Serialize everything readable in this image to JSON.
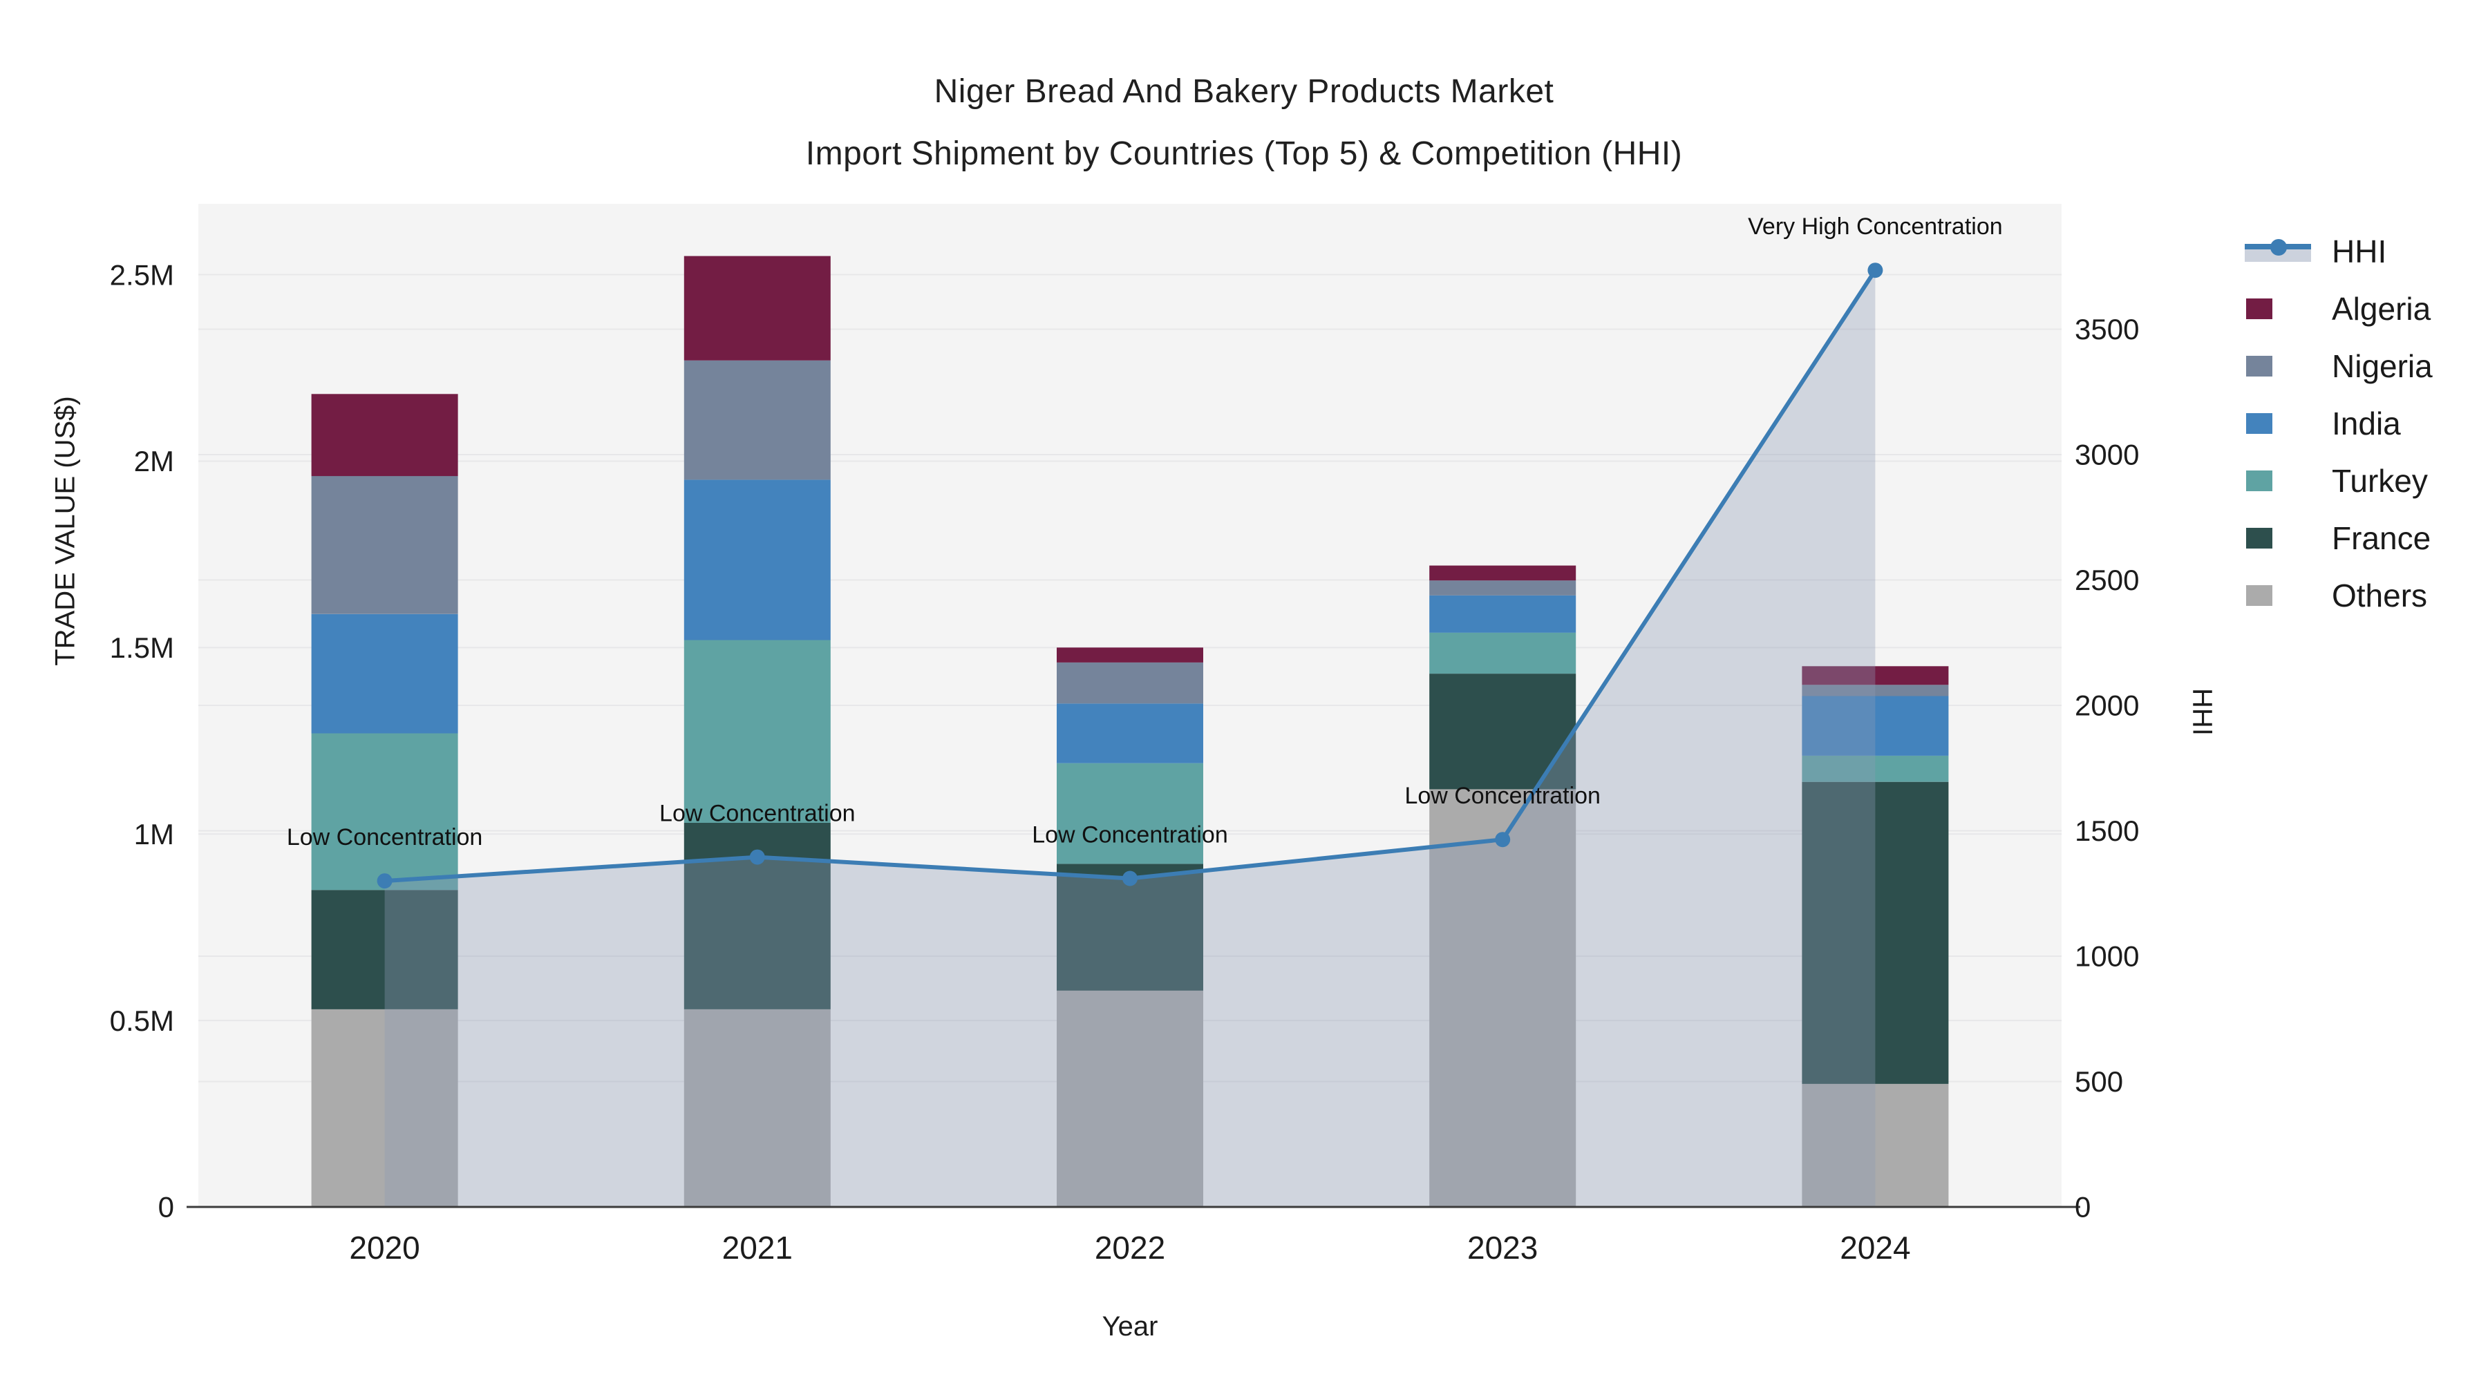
{
  "title": {
    "line1": "Niger Bread And Bakery Products Market",
    "line2": "Import Shipment by Countries (Top 5) & Competition (HHI)"
  },
  "axes": {
    "x": {
      "title": "Year",
      "categories": [
        "2020",
        "2021",
        "2022",
        "2023",
        "2024"
      ]
    },
    "y_left": {
      "title": "TRADE VALUE (US$)",
      "ticks": [
        {
          "label": "0",
          "value": 0
        },
        {
          "label": "0.5M",
          "value": 0.5
        },
        {
          "label": "1M",
          "value": 1
        },
        {
          "label": "1.5M",
          "value": 1.5
        },
        {
          "label": "2M",
          "value": 2
        },
        {
          "label": "2.5M",
          "value": 2.5
        }
      ],
      "max": 2.69
    },
    "y_right": {
      "title": "HHI",
      "ticks": [
        {
          "label": "0",
          "value": 0
        },
        {
          "label": "500",
          "value": 500
        },
        {
          "label": "1000",
          "value": 1000
        },
        {
          "label": "1500",
          "value": 1500
        },
        {
          "label": "2000",
          "value": 2000
        },
        {
          "label": "2500",
          "value": 2500
        },
        {
          "label": "3000",
          "value": 3000
        },
        {
          "label": "3500",
          "value": 3500
        }
      ],
      "max": 4000
    }
  },
  "legend": {
    "items": [
      {
        "label": "HHI",
        "type": "line",
        "color": "#3C7DB4",
        "band_color": "#CCD2DD"
      },
      {
        "label": "Algeria",
        "type": "swatch",
        "color": "#731D44"
      },
      {
        "label": "Nigeria",
        "type": "swatch",
        "color": "#75849B"
      },
      {
        "label": "India",
        "type": "swatch",
        "color": "#4383BD"
      },
      {
        "label": "Turkey",
        "type": "swatch",
        "color": "#5FA3A3"
      },
      {
        "label": "France",
        "type": "swatch",
        "color": "#2D4F4D"
      },
      {
        "label": "Others",
        "type": "swatch",
        "color": "#ABABAB"
      }
    ]
  },
  "chart_data": {
    "type": "bar",
    "subtype": "stacked-bars-with-line-overlay",
    "title": "Niger Bread And Bakery Products Market — Import Shipment by Countries (Top 5) & Competition (HHI)",
    "xlabel": "Year",
    "ylabel_left": "TRADE VALUE (US$)",
    "ylabel_right": "HHI",
    "categories": [
      "2020",
      "2021",
      "2022",
      "2023",
      "2024"
    ],
    "unit": "Million US$",
    "stack_order_note": "series listed bottom-to-top",
    "series": [
      {
        "name": "Others",
        "color": "#ABABAB",
        "values": [
          0.53,
          0.53,
          0.58,
          1.12,
          0.33
        ]
      },
      {
        "name": "France",
        "color": "#2D4F4D",
        "values": [
          0.32,
          0.5,
          0.34,
          0.31,
          0.81
        ]
      },
      {
        "name": "Turkey",
        "color": "#5FA3A3",
        "values": [
          0.42,
          0.49,
          0.27,
          0.11,
          0.07
        ]
      },
      {
        "name": "India",
        "color": "#4383BD",
        "values": [
          0.32,
          0.43,
          0.16,
          0.1,
          0.16
        ]
      },
      {
        "name": "Nigeria",
        "color": "#75849B",
        "values": [
          0.37,
          0.32,
          0.11,
          0.04,
          0.03
        ]
      },
      {
        "name": "Algeria",
        "color": "#731D44",
        "values": [
          0.22,
          0.28,
          0.04,
          0.04,
          0.05
        ]
      }
    ],
    "bar_totals": [
      2.18,
      2.55,
      1.5,
      1.72,
      1.45
    ],
    "hhi_line": {
      "name": "HHI",
      "axis": "right",
      "color": "#3C7DB4",
      "fill_color": "rgba(140,155,180,0.35)",
      "marker_radius": 11,
      "line_width": 6,
      "values": [
        1300,
        1395,
        1310,
        1465,
        3735
      ]
    },
    "annotations": [
      {
        "category": "2020",
        "text": "Low Concentration"
      },
      {
        "category": "2021",
        "text": "Low Concentration"
      },
      {
        "category": "2022",
        "text": "Low Concentration"
      },
      {
        "category": "2023",
        "text": "Low Concentration"
      },
      {
        "category": "2024",
        "text": "Very High Concentration"
      }
    ],
    "ylim_left": [
      0,
      2.69
    ],
    "ylim_right": [
      0,
      4000
    ],
    "grid": true,
    "legend_position": "right",
    "plot_bg": "#F4F4F4",
    "grid_color": "#E7E7E9",
    "axis_line_color": "#3B3B3B",
    "text_color": "#1C1C1C"
  }
}
